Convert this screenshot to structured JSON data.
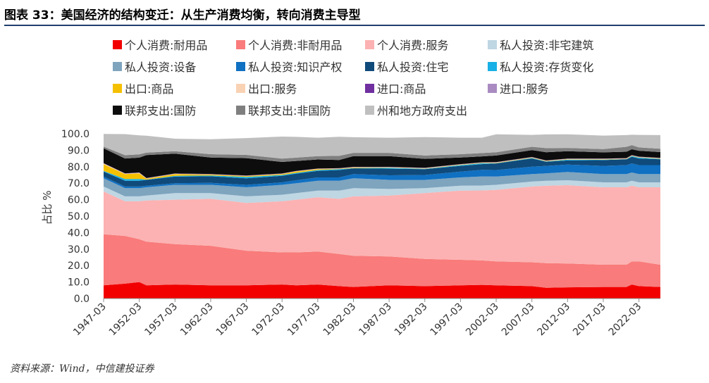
{
  "header": {
    "title": "图表 33：美国经济的结构变迁：从生产消费均衡，转向消费主导型"
  },
  "source": {
    "text": "资料来源：Wind，中信建投证券"
  },
  "chart_data": {
    "type": "area",
    "stacked": true,
    "title": "",
    "xlabel": "",
    "ylabel": "占比 %",
    "ylim": [
      0,
      100
    ],
    "yticks": [
      "0.0",
      "10.0",
      "20.0",
      "30.0",
      "40.0",
      "50.0",
      "60.0",
      "70.0",
      "80.0",
      "90.0",
      "100.0"
    ],
    "x": [
      "1947-03",
      "1950-03",
      "1952-03",
      "1953-03",
      "1957-03",
      "1962-03",
      "1967-03",
      "1972-03",
      "1974-03",
      "1977-03",
      "1980-03",
      "1982-03",
      "1987-03",
      "1992-03",
      "1997-03",
      "2000-03",
      "2002-03",
      "2007-03",
      "2009-03",
      "2012-03",
      "2017-03",
      "2020-06",
      "2021-03",
      "2022-03",
      "2025-03"
    ],
    "xticks": [
      "1947-03",
      "1952-03",
      "1957-03",
      "1962-03",
      "1967-03",
      "1972-03",
      "1977-03",
      "1982-03",
      "1987-03",
      "1992-03",
      "1997-03",
      "2002-03",
      "2007-03",
      "2012-03",
      "2017-03",
      "2022-03"
    ],
    "legend_position": "top",
    "series": [
      {
        "name": "个人消费:耐用品",
        "color": "#f20000",
        "values": [
          8,
          9,
          10,
          8,
          8.5,
          8,
          8,
          8.5,
          8,
          8.5,
          7.5,
          7,
          8,
          7.5,
          8,
          8.3,
          8,
          7.5,
          6.5,
          6.8,
          7,
          7,
          8.5,
          7.5,
          7
        ]
      },
      {
        "name": "个人消费:非耐用品",
        "color": "#f97b7b",
        "values": [
          31,
          29,
          26,
          26.5,
          24.5,
          24,
          21,
          19.5,
          20,
          20,
          19.5,
          19,
          17.5,
          16.5,
          15.5,
          14.8,
          14.5,
          14.5,
          15,
          14.5,
          13.5,
          13.5,
          14,
          15,
          13.5
        ]
      },
      {
        "name": "个人消费:服务",
        "color": "#fcb2b2",
        "values": [
          26,
          21,
          23,
          25,
          27,
          28.5,
          29,
          31,
          32,
          33,
          33.5,
          36,
          37,
          40,
          42,
          42.5,
          43.5,
          46,
          47,
          47.5,
          47,
          47,
          46,
          45,
          47
        ]
      },
      {
        "name": "私人投资:非宅建筑",
        "color": "#bfd6e3",
        "values": [
          3,
          3,
          3,
          3,
          4,
          3.5,
          4,
          4,
          4,
          4,
          5,
          5,
          4,
          3,
          3,
          3,
          3,
          3,
          3,
          3,
          3,
          3,
          3,
          3,
          3
        ]
      },
      {
        "name": "私人投资:设备",
        "color": "#7ea4be",
        "values": [
          5,
          5,
          5,
          5,
          5,
          5,
          5.5,
          6,
          6,
          6,
          6,
          6,
          5.5,
          5,
          5,
          5.5,
          5,
          4.5,
          4.5,
          5,
          5,
          5,
          5,
          5,
          5
        ]
      },
      {
        "name": "私人投资:知识产权",
        "color": "#1070c2",
        "values": [
          1,
          1,
          1,
          1,
          1,
          1.2,
          1.5,
          1.5,
          1.8,
          2,
          2,
          2.5,
          2.8,
          3,
          3.5,
          4,
          4,
          4.5,
          4.5,
          4.5,
          5,
          5.5,
          5.5,
          5.5,
          5.5
        ]
      },
      {
        "name": "私人投资:住宅",
        "color": "#0f4a7a",
        "values": [
          3,
          3.5,
          3.5,
          3.5,
          4,
          4,
          4,
          4,
          4,
          4,
          4.5,
          3.5,
          4,
          3.5,
          3.5,
          3.5,
          4,
          5,
          2.5,
          2.5,
          3.5,
          3.5,
          4,
          4,
          3.5
        ]
      },
      {
        "name": "私人投资:存货变化",
        "color": "#18b0e6",
        "values": [
          0.5,
          1,
          1,
          0.2,
          0.5,
          0.5,
          0.8,
          0.5,
          0.5,
          0.5,
          0.5,
          0.2,
          0.5,
          0.2,
          0.5,
          0.5,
          0.2,
          0.3,
          0.2,
          0.5,
          0.3,
          0.1,
          0.5,
          0.5,
          0.3
        ]
      },
      {
        "name": "出口:商品",
        "color": "#f5c000",
        "values": [
          4,
          3,
          3.5,
          0.5,
          1,
          0.5,
          0.5,
          0.5,
          0.8,
          0.5,
          0.2,
          0.3,
          0.2,
          0.2,
          0.2,
          0.2,
          0.2,
          0.2,
          0.2,
          0.2,
          0.2,
          0.2,
          0.2,
          0.2,
          0.2
        ]
      },
      {
        "name": "出口:服务",
        "color": "#f9d2b4",
        "values": [
          0.5,
          0.3,
          0.3,
          0.2,
          0.2,
          0.2,
          0.2,
          0.2,
          0.2,
          0.2,
          0.2,
          0.2,
          0.2,
          0.2,
          0.2,
          0.2,
          0.2,
          0.2,
          0.2,
          0.2,
          0.2,
          0.2,
          0.2,
          0.2,
          0.2
        ]
      },
      {
        "name": "进口:商品",
        "color": "#7030a0",
        "values": [
          0.1,
          0.1,
          0.1,
          0.1,
          0.1,
          0.1,
          0.1,
          0.1,
          0.1,
          0.1,
          0.1,
          0.1,
          0.1,
          0.1,
          0.1,
          0.1,
          0.1,
          0.1,
          0.1,
          0.1,
          0.1,
          0.1,
          0.1,
          0.1,
          0.1
        ]
      },
      {
        "name": "进口:服务",
        "color": "#a98bc1",
        "values": [
          0.1,
          0.1,
          0.1,
          0.1,
          0.1,
          0.1,
          0.1,
          0.1,
          0.1,
          0.1,
          0.1,
          0.1,
          0.1,
          0.1,
          0.1,
          0.1,
          0.1,
          0.1,
          0.1,
          0.1,
          0.1,
          0.1,
          0.1,
          0.1,
          0.1
        ]
      },
      {
        "name": "联邦支出:国防",
        "color": "#0d0d0d",
        "values": [
          9,
          9,
          9,
          14,
          12,
          10,
          10.5,
          7,
          6,
          5.5,
          5,
          6.5,
          6.5,
          5.5,
          4,
          3.6,
          4,
          4.2,
          5,
          4.5,
          3.8,
          3.9,
          3.5,
          3.6,
          3.5
        ]
      },
      {
        "name": "联邦支出:非国防",
        "color": "#7f7f7f",
        "values": [
          1,
          2,
          2,
          1.5,
          1.5,
          2,
          2,
          2,
          2,
          2,
          2.5,
          2,
          2,
          2,
          2,
          2,
          2,
          2,
          2.5,
          2,
          2,
          3,
          2.5,
          2,
          2
        ]
      },
      {
        "name": "州和地方政府支出",
        "color": "#bfbfbf",
        "values": [
          7.7,
          12.8,
          11.5,
          10.2,
          7.6,
          9.1,
          10.2,
          13.4,
          12.6,
          11.2,
          11.6,
          9.5,
          9.2,
          11.2,
          10,
          9.3,
          10.9,
          7.2,
          8.3,
          8.3,
          8.2,
          7.1,
          6.3,
          7.6,
          8.3
        ]
      }
    ]
  }
}
